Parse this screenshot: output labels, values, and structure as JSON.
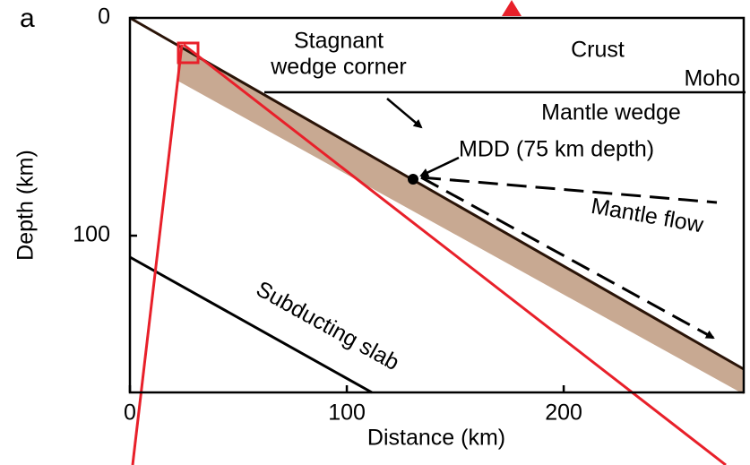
{
  "chart_data": {
    "type": "cross-section",
    "panel_label": "a",
    "xlabel": "Distance (km)",
    "ylabel": "Depth (km)",
    "xlim": [
      0,
      283
    ],
    "ylim": [
      0,
      172
    ],
    "xticks": [
      0,
      100,
      200
    ],
    "yticks": [
      0,
      100
    ],
    "annotations": {
      "stagnant_1": "Stagnant",
      "stagnant_2": "wedge corner",
      "crust": "Crust",
      "moho": "Moho",
      "mantle_wedge": "Mantle wedge",
      "mdd": "MDD (75 km depth)",
      "mantle_flow": "Mantle flow",
      "slab": "Subducting slab"
    }
  }
}
